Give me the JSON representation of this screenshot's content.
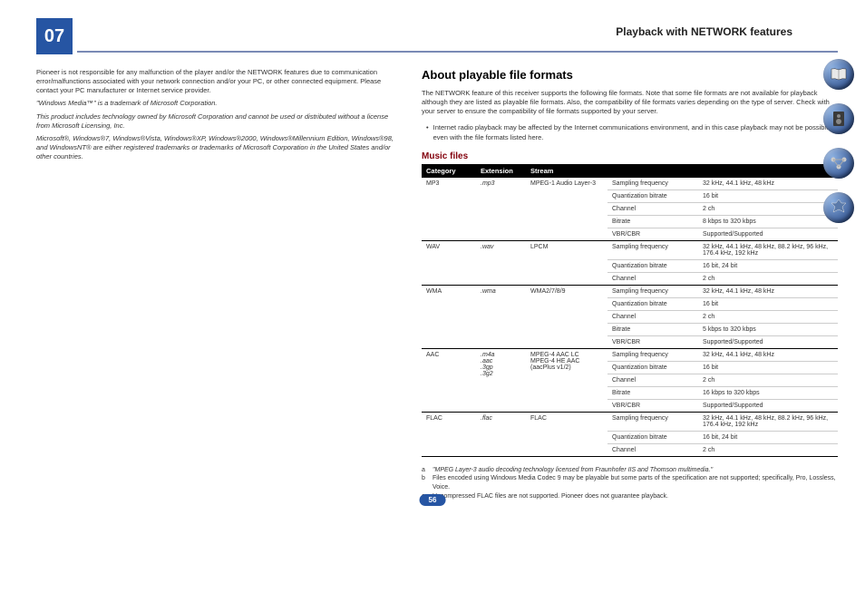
{
  "chapter": "07",
  "header_title_pre": "Playback with ",
  "header_title_net": "NETWORK",
  "header_title_post": " features",
  "left": {
    "p1": "Pioneer is not responsible for any malfunction of the player and/or the NETWORK features due to communication error/malfunctions associated with your network connection and/or your PC, or other connected equipment. Please contact your PC manufacturer or Internet service provider.",
    "p2": "\"Windows Media™\" is a trademark of Microsoft Corporation.",
    "p3": "This product includes technology owned by Microsoft Corporation and cannot be used or distributed without a license from Microsoft Licensing, Inc.",
    "p4": "Microsoft®, Windows®7, Windows®Vista, Windows®XP, Windows®2000, Windows®Millennium Edition, Windows®98, and WindowsNT® are either registered trademarks or trademarks of Microsoft Corporation in the United States and/or other countries."
  },
  "right": {
    "title": "About playable file formats",
    "desc": "The NETWORK feature of this receiver supports the following file formats. Note that some file formats are not available for playback although they are listed as playable file formats. Also, the compatibility of file formats varies depending on the type of server. Check with your server to ensure the compatibility of file formats supported by your server.",
    "bullet": "Internet radio playback may be affected by the Internet communications environment, and in this case playback may not be possible even with the file formats listed here.",
    "subsection": "Music files",
    "th1": "Category",
    "th2": "Extension",
    "th3": "Stream",
    "formats": [
      {
        "cat": "MP3",
        "catnote": "<a>",
        "ext": ".mp3",
        "stream": "MPEG-1 Audio Layer-3",
        "rows": [
          [
            "Sampling frequency",
            "32 kHz, 44.1 kHz, 48 kHz"
          ],
          [
            "Quantization bitrate",
            "16 bit"
          ],
          [
            "Channel",
            "2 ch"
          ],
          [
            "Bitrate",
            "8 kbps to 320 kbps"
          ],
          [
            "VBR/CBR",
            "Supported/Supported"
          ]
        ]
      },
      {
        "cat": "WAV",
        "catnote": "",
        "ext": ".wav",
        "stream": "LPCM",
        "rows": [
          [
            "Sampling frequency",
            "32 kHz, 44.1 kHz, 48 kHz, 88.2 kHz, 96 kHz, 176.4 kHz, 192 kHz"
          ],
          [
            "Quantization bitrate",
            "16 bit, 24 bit"
          ],
          [
            "Channel",
            "2 ch"
          ]
        ]
      },
      {
        "cat": "WMA",
        "catnote": "",
        "ext": ".wma",
        "stream": "WMA2/7/8/9",
        "streamnote": "<b>",
        "rows": [
          [
            "Sampling frequency",
            "32 kHz, 44.1 kHz, 48 kHz"
          ],
          [
            "Quantization bitrate",
            "16 bit"
          ],
          [
            "Channel",
            "2 ch"
          ],
          [
            "Bitrate",
            "5 kbps to 320 kbps"
          ],
          [
            "VBR/CBR",
            "Supported/Supported"
          ]
        ]
      },
      {
        "cat": "AAC",
        "catnote": "",
        "ext": ".m4a\n.aac\n.3gp\n.3g2",
        "stream": "MPEG-4 AAC LC\nMPEG-4 HE AAC\n(aacPlus v1/2)",
        "rows": [
          [
            "Sampling frequency",
            "32 kHz, 44.1 kHz, 48 kHz"
          ],
          [
            "Quantization bitrate",
            "16 bit"
          ],
          [
            "Channel",
            "2 ch"
          ],
          [
            "Bitrate",
            "16 kbps to 320 kbps"
          ],
          [
            "VBR/CBR",
            "Supported/Supported"
          ]
        ]
      },
      {
        "cat": "FLAC",
        "catnote": "<c>",
        "ext": ".flac",
        "stream": "FLAC",
        "rows": [
          [
            "Sampling frequency",
            "32 kHz, 44.1 kHz, 48 kHz, 88.2 kHz, 96 kHz, 176.4 kHz, 192 kHz"
          ],
          [
            "Quantization bitrate",
            "16 bit, 24 bit"
          ],
          [
            "Channel",
            "2 ch"
          ]
        ]
      }
    ],
    "footnotes": [
      {
        "label": "a",
        "text": "\"MPEG Layer-3 audio decoding technology licensed from Fraunhofer IIS and Thomson multimedia.\"",
        "italic": true
      },
      {
        "label": "b",
        "text": "Files encoded using Windows Media Codec 9 may be playable but some parts of the specification are not supported; specifically, Pro, Lossless, Voice.",
        "italic": false
      },
      {
        "label": "c",
        "text": "Uncompressed FLAC files are not supported. Pioneer does not guarantee playback.",
        "italic": false
      }
    ]
  },
  "page_num": "56",
  "icons": [
    "book",
    "speaker",
    "network",
    "badge"
  ]
}
